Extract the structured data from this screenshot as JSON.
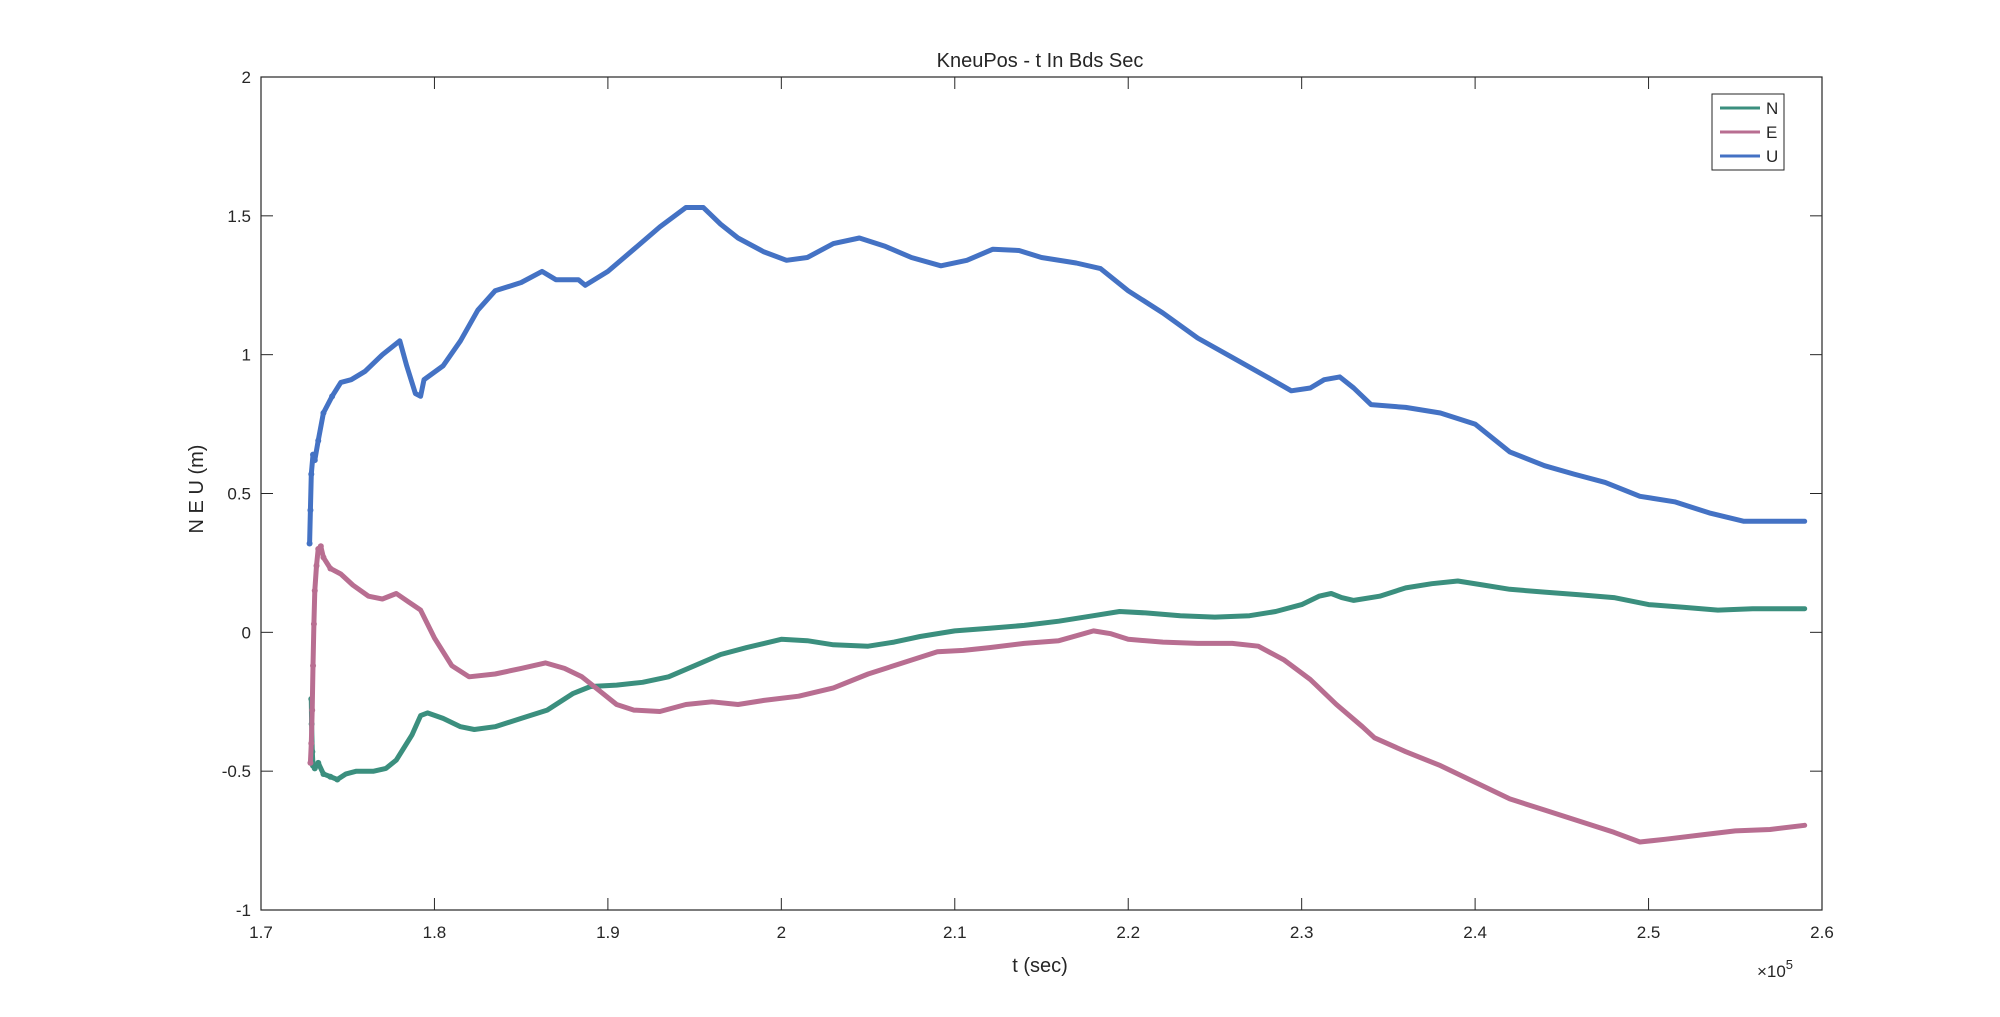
{
  "chart_data": {
    "type": "line",
    "title": "KneuPos - t In Bds Sec",
    "xlabel": "t (sec)",
    "ylabel": "N E U (m)",
    "x_exponent_label": "×10",
    "x_exponent_power": "5",
    "xlim": [
      170000,
      260000
    ],
    "ylim": [
      -1,
      2
    ],
    "xticks": [
      170000,
      180000,
      190000,
      200000,
      210000,
      220000,
      230000,
      240000,
      250000,
      260000
    ],
    "xtick_labels": [
      "1.7",
      "1.8",
      "1.9",
      "2",
      "2.1",
      "2.2",
      "2.3",
      "2.4",
      "2.5",
      "2.6"
    ],
    "yticks": [
      -1,
      -0.5,
      0,
      0.5,
      1,
      1.5,
      2
    ],
    "ytick_labels": [
      "-1",
      "-0.5",
      "0",
      "0.5",
      "1",
      "1.5",
      "2"
    ],
    "grid": false,
    "legend_position": "top-right",
    "series": [
      {
        "name": "N",
        "color": "#3b8f7e",
        "points": [
          [
            172900,
            -0.24
          ],
          [
            172920,
            -0.33
          ],
          [
            172960,
            -0.43
          ],
          [
            173000,
            -0.48
          ],
          [
            173100,
            -0.49
          ],
          [
            173300,
            -0.47
          ],
          [
            173600,
            -0.51
          ],
          [
            174000,
            -0.52
          ],
          [
            174400,
            -0.53
          ],
          [
            174900,
            -0.51
          ],
          [
            175500,
            -0.5
          ],
          [
            176500,
            -0.5
          ],
          [
            177200,
            -0.49
          ],
          [
            177800,
            -0.46
          ],
          [
            178200,
            -0.42
          ],
          [
            178700,
            -0.37
          ],
          [
            179200,
            -0.3
          ],
          [
            179600,
            -0.29
          ],
          [
            180500,
            -0.31
          ],
          [
            181500,
            -0.34
          ],
          [
            182300,
            -0.35
          ],
          [
            183500,
            -0.34
          ],
          [
            185000,
            -0.31
          ],
          [
            186500,
            -0.28
          ],
          [
            188000,
            -0.22
          ],
          [
            189000,
            -0.195
          ],
          [
            190500,
            -0.19
          ],
          [
            192000,
            -0.18
          ],
          [
            193500,
            -0.16
          ],
          [
            195000,
            -0.12
          ],
          [
            196500,
            -0.08
          ],
          [
            198000,
            -0.055
          ],
          [
            200000,
            -0.025
          ],
          [
            201500,
            -0.03
          ],
          [
            203000,
            -0.045
          ],
          [
            205000,
            -0.05
          ],
          [
            206500,
            -0.035
          ],
          [
            208000,
            -0.015
          ],
          [
            210000,
            0.005
          ],
          [
            212000,
            0.015
          ],
          [
            214000,
            0.025
          ],
          [
            216000,
            0.04
          ],
          [
            218000,
            0.06
          ],
          [
            219500,
            0.075
          ],
          [
            221000,
            0.07
          ],
          [
            223000,
            0.06
          ],
          [
            225000,
            0.055
          ],
          [
            227000,
            0.06
          ],
          [
            228500,
            0.075
          ],
          [
            230000,
            0.1
          ],
          [
            231000,
            0.13
          ],
          [
            231700,
            0.14
          ],
          [
            232300,
            0.125
          ],
          [
            233000,
            0.115
          ],
          [
            234500,
            0.13
          ],
          [
            236000,
            0.16
          ],
          [
            237500,
            0.175
          ],
          [
            239000,
            0.185
          ],
          [
            240500,
            0.17
          ],
          [
            242000,
            0.155
          ],
          [
            244000,
            0.145
          ],
          [
            246000,
            0.135
          ],
          [
            248000,
            0.125
          ],
          [
            250000,
            0.1
          ],
          [
            252000,
            0.09
          ],
          [
            254000,
            0.08
          ],
          [
            256000,
            0.085
          ],
          [
            259000,
            0.085
          ]
        ]
      },
      {
        "name": "E",
        "color": "#b86e91",
        "points": [
          [
            172850,
            -0.47
          ],
          [
            172900,
            -0.4
          ],
          [
            172950,
            -0.28
          ],
          [
            173000,
            -0.12
          ],
          [
            173050,
            0.03
          ],
          [
            173100,
            0.15
          ],
          [
            173200,
            0.24
          ],
          [
            173300,
            0.3
          ],
          [
            173450,
            0.31
          ],
          [
            173600,
            0.27
          ],
          [
            174000,
            0.23
          ],
          [
            174600,
            0.21
          ],
          [
            175300,
            0.17
          ],
          [
            176200,
            0.13
          ],
          [
            177000,
            0.12
          ],
          [
            177800,
            0.14
          ],
          [
            178500,
            0.11
          ],
          [
            179200,
            0.08
          ],
          [
            180000,
            -0.02
          ],
          [
            181000,
            -0.12
          ],
          [
            182000,
            -0.16
          ],
          [
            183500,
            -0.15
          ],
          [
            185000,
            -0.13
          ],
          [
            186400,
            -0.11
          ],
          [
            187500,
            -0.13
          ],
          [
            188500,
            -0.16
          ],
          [
            189500,
            -0.21
          ],
          [
            190500,
            -0.26
          ],
          [
            191500,
            -0.28
          ],
          [
            193000,
            -0.285
          ],
          [
            194500,
            -0.26
          ],
          [
            196000,
            -0.25
          ],
          [
            197500,
            -0.26
          ],
          [
            199000,
            -0.245
          ],
          [
            201000,
            -0.23
          ],
          [
            203000,
            -0.2
          ],
          [
            205000,
            -0.15
          ],
          [
            207000,
            -0.11
          ],
          [
            209000,
            -0.07
          ],
          [
            210500,
            -0.065
          ],
          [
            212000,
            -0.055
          ],
          [
            214000,
            -0.04
          ],
          [
            216000,
            -0.03
          ],
          [
            218000,
            0.005
          ],
          [
            219000,
            -0.005
          ],
          [
            220000,
            -0.025
          ],
          [
            222000,
            -0.035
          ],
          [
            224000,
            -0.04
          ],
          [
            226000,
            -0.04
          ],
          [
            227500,
            -0.05
          ],
          [
            229000,
            -0.1
          ],
          [
            230500,
            -0.17
          ],
          [
            232000,
            -0.26
          ],
          [
            233500,
            -0.34
          ],
          [
            234200,
            -0.38
          ],
          [
            236000,
            -0.43
          ],
          [
            238000,
            -0.48
          ],
          [
            240000,
            -0.54
          ],
          [
            242000,
            -0.6
          ],
          [
            244000,
            -0.64
          ],
          [
            246000,
            -0.68
          ],
          [
            248000,
            -0.72
          ],
          [
            249500,
            -0.755
          ],
          [
            251000,
            -0.745
          ],
          [
            253000,
            -0.73
          ],
          [
            255000,
            -0.715
          ],
          [
            257000,
            -0.71
          ],
          [
            259000,
            -0.695
          ]
        ]
      },
      {
        "name": "U",
        "color": "#4472c4",
        "points": [
          [
            172800,
            0.32
          ],
          [
            172850,
            0.44
          ],
          [
            172900,
            0.57
          ],
          [
            173000,
            0.64
          ],
          [
            173100,
            0.62
          ],
          [
            173300,
            0.69
          ],
          [
            173600,
            0.79
          ],
          [
            174100,
            0.85
          ],
          [
            174600,
            0.9
          ],
          [
            175200,
            0.91
          ],
          [
            176000,
            0.94
          ],
          [
            177000,
            1.0
          ],
          [
            178000,
            1.05
          ],
          [
            178400,
            0.96
          ],
          [
            178900,
            0.86
          ],
          [
            179200,
            0.85
          ],
          [
            179400,
            0.91
          ],
          [
            180500,
            0.96
          ],
          [
            181500,
            1.05
          ],
          [
            182500,
            1.16
          ],
          [
            183500,
            1.23
          ],
          [
            185000,
            1.26
          ],
          [
            186200,
            1.3
          ],
          [
            187000,
            1.27
          ],
          [
            188300,
            1.27
          ],
          [
            188700,
            1.25
          ],
          [
            190000,
            1.3
          ],
          [
            191500,
            1.38
          ],
          [
            193000,
            1.46
          ],
          [
            194500,
            1.53
          ],
          [
            195500,
            1.53
          ],
          [
            196500,
            1.47
          ],
          [
            197500,
            1.42
          ],
          [
            199000,
            1.37
          ],
          [
            200300,
            1.34
          ],
          [
            201500,
            1.35
          ],
          [
            203000,
            1.4
          ],
          [
            204500,
            1.42
          ],
          [
            206000,
            1.39
          ],
          [
            207500,
            1.35
          ],
          [
            209200,
            1.32
          ],
          [
            210700,
            1.34
          ],
          [
            212200,
            1.38
          ],
          [
            213700,
            1.375
          ],
          [
            215000,
            1.35
          ],
          [
            217000,
            1.33
          ],
          [
            218400,
            1.31
          ],
          [
            220000,
            1.23
          ],
          [
            222000,
            1.15
          ],
          [
            224000,
            1.06
          ],
          [
            226000,
            0.99
          ],
          [
            228000,
            0.92
          ],
          [
            229400,
            0.87
          ],
          [
            230500,
            0.88
          ],
          [
            231300,
            0.91
          ],
          [
            232200,
            0.92
          ],
          [
            233000,
            0.88
          ],
          [
            234000,
            0.82
          ],
          [
            236000,
            0.81
          ],
          [
            238000,
            0.79
          ],
          [
            240000,
            0.75
          ],
          [
            242000,
            0.65
          ],
          [
            244000,
            0.6
          ],
          [
            245700,
            0.57
          ],
          [
            247500,
            0.54
          ],
          [
            249500,
            0.49
          ],
          [
            251500,
            0.47
          ],
          [
            253500,
            0.43
          ],
          [
            255500,
            0.4
          ],
          [
            257000,
            0.4
          ],
          [
            259000,
            0.4
          ]
        ]
      }
    ]
  }
}
